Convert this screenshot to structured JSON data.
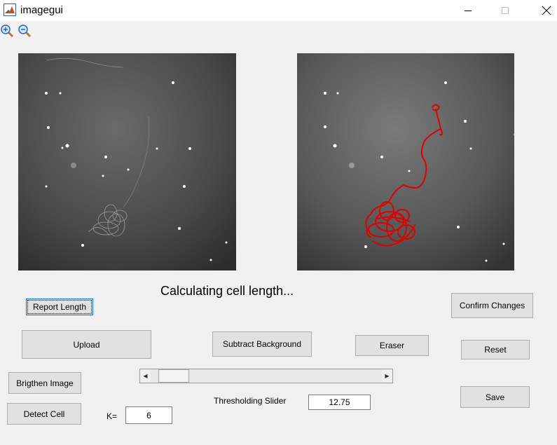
{
  "window": {
    "title": "imagegui"
  },
  "toolbar": {
    "zoom_in_icon": "zoom-in-icon",
    "zoom_out_icon": "zoom-out-icon"
  },
  "status_text": "Calculating cell length...",
  "buttons": {
    "report_length": "Report Length",
    "confirm_changes": "Confirm Changes",
    "upload": "Upload",
    "subtract_background": "Subtract Background",
    "eraser": "Eraser",
    "reset": "Reset",
    "brighten_image": "Brigthen Image",
    "detect_cell": "Detect Cell",
    "save": "Save"
  },
  "threshold": {
    "label": "Thresholding Slider",
    "value": "12.75",
    "slider_fraction": 0.04
  },
  "k": {
    "label": "K=",
    "value": "6"
  },
  "colors": {
    "trace": "#e00000",
    "focus_border": "#0078d7",
    "button_face": "#e1e1e1"
  }
}
